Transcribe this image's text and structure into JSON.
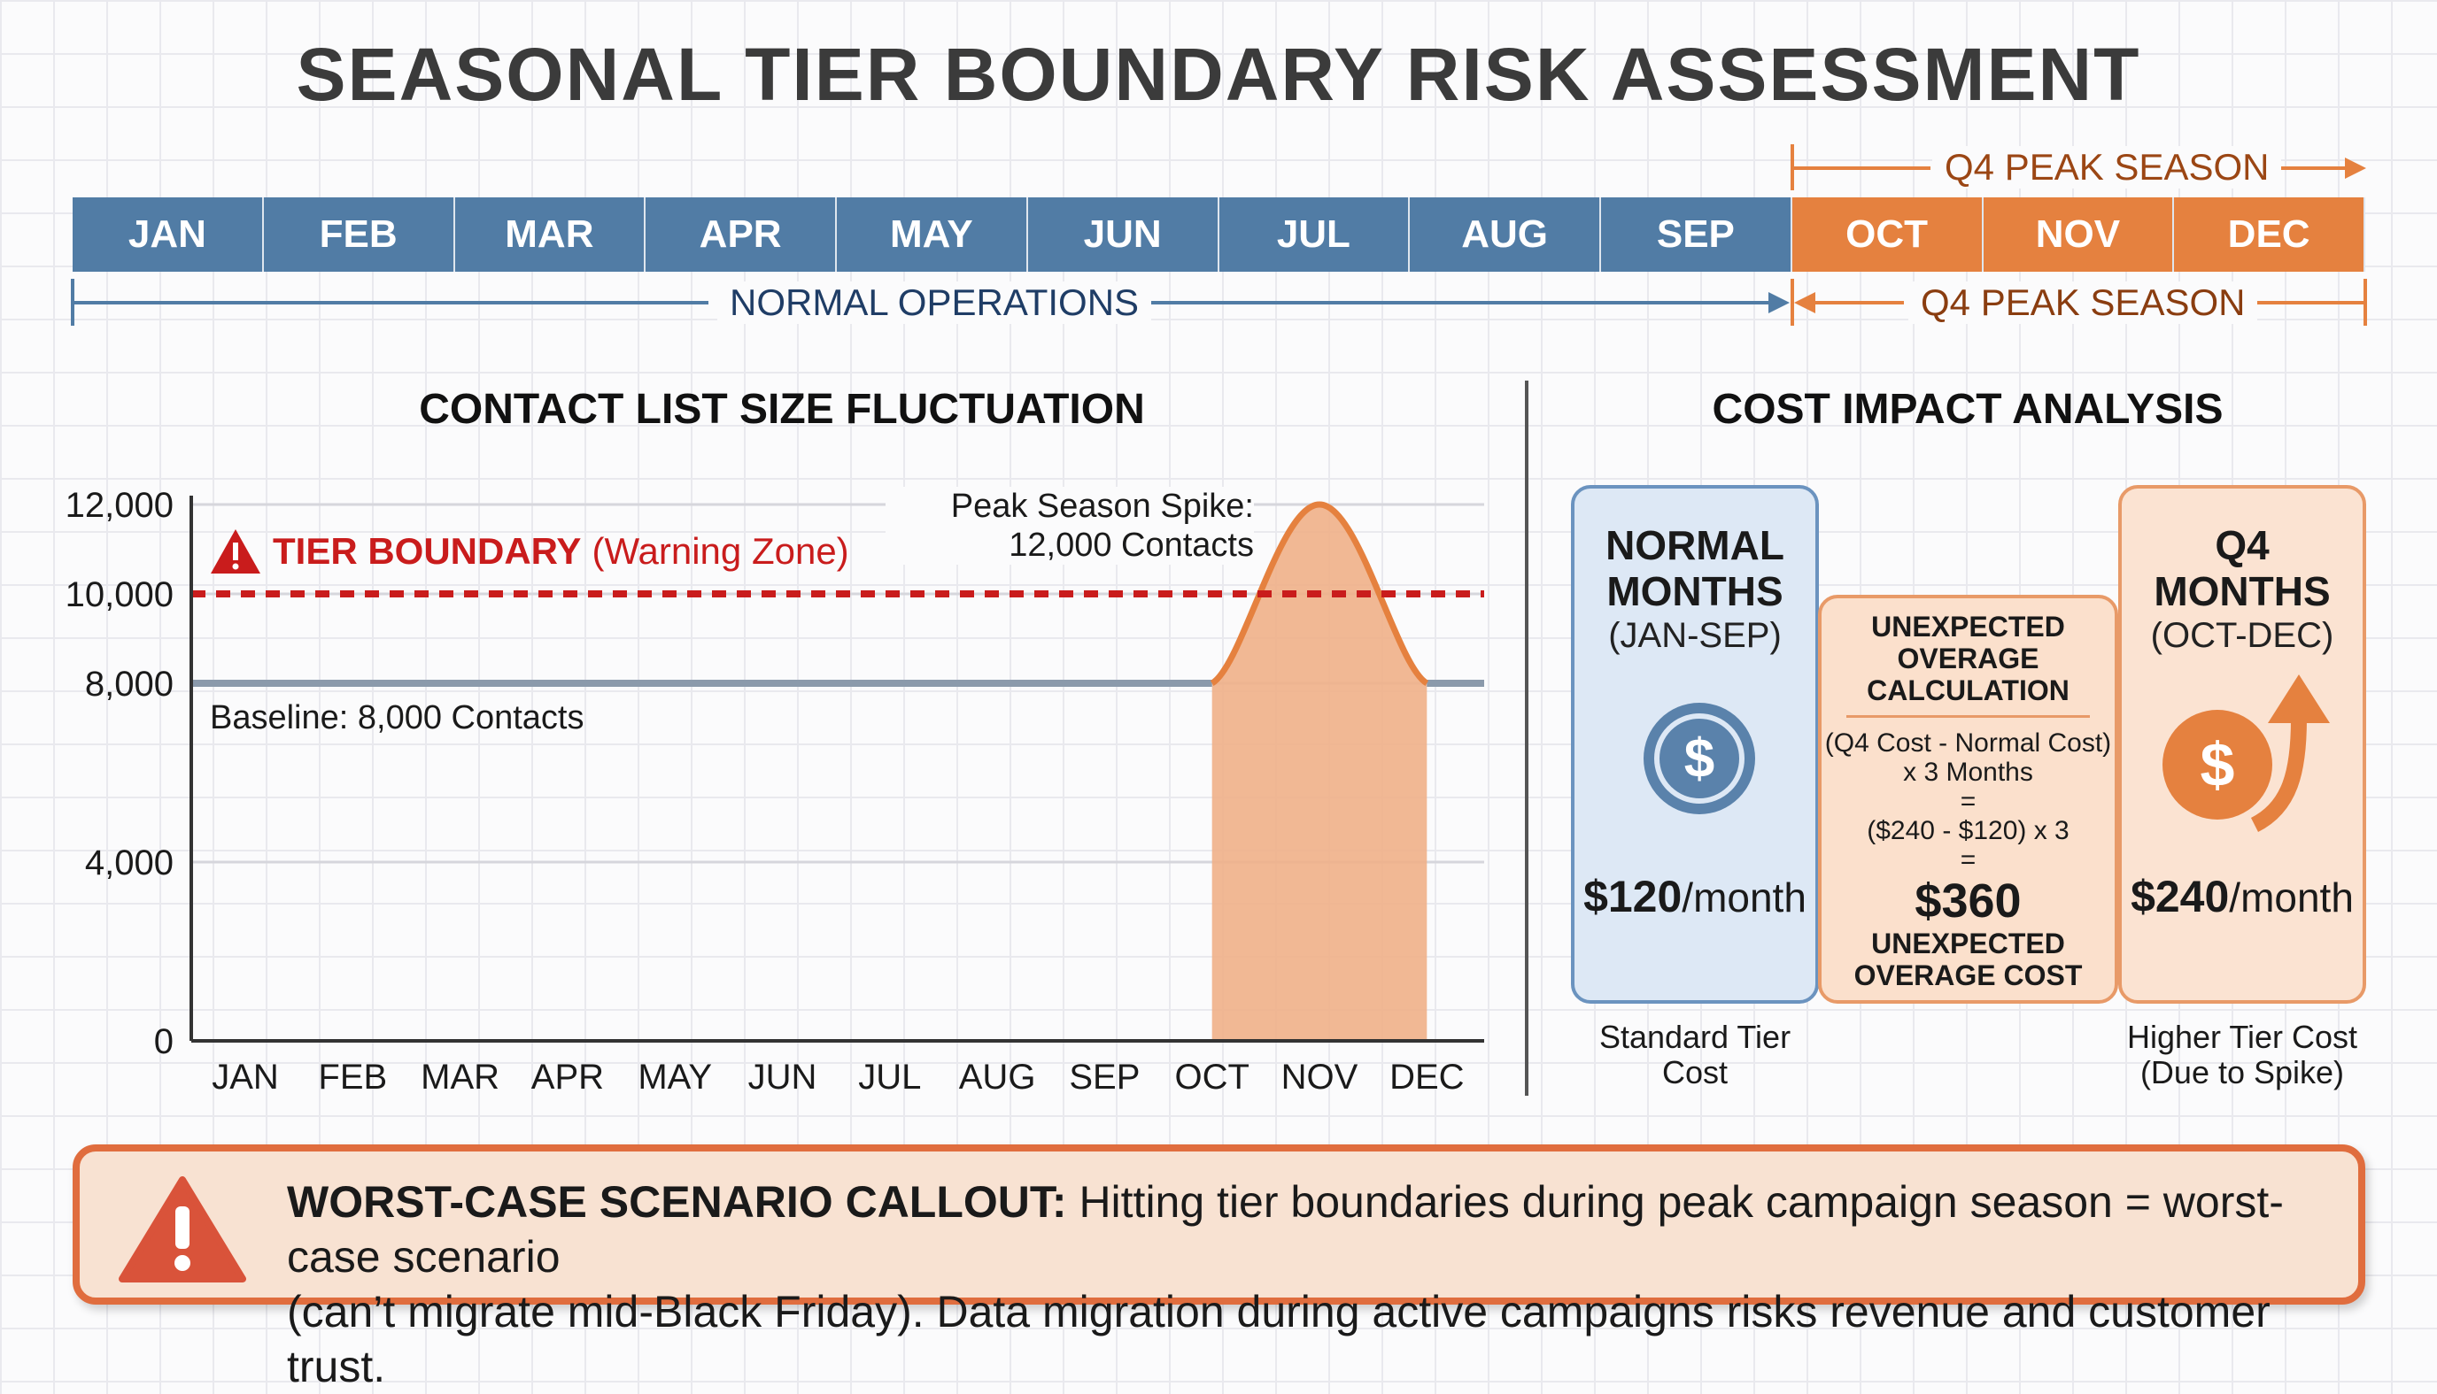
{
  "title": "SEASONAL TIER BOUNDARY RISK ASSESSMENT",
  "timeline": {
    "months": [
      {
        "label": "JAN",
        "season": "normal"
      },
      {
        "label": "FEB",
        "season": "normal"
      },
      {
        "label": "MAR",
        "season": "normal"
      },
      {
        "label": "APR",
        "season": "normal"
      },
      {
        "label": "MAY",
        "season": "normal"
      },
      {
        "label": "JUN",
        "season": "normal"
      },
      {
        "label": "JUL",
        "season": "normal"
      },
      {
        "label": "AUG",
        "season": "normal"
      },
      {
        "label": "SEP",
        "season": "normal"
      },
      {
        "label": "OCT",
        "season": "peak"
      },
      {
        "label": "NOV",
        "season": "peak"
      },
      {
        "label": "DEC",
        "season": "peak"
      }
    ],
    "peak_label_top": "Q4 PEAK SEASON",
    "normal_label": "NORMAL OPERATIONS",
    "peak_label_bottom": "Q4 PEAK SEASON",
    "colors": {
      "normal": "#517ca5",
      "peak": "#e5813f"
    }
  },
  "chart_title": "CONTACT LIST SIZE FLUCTUATION",
  "chart_data": {
    "type": "area",
    "categories": [
      "JAN",
      "FEB",
      "MAR",
      "APR",
      "MAY",
      "JUN",
      "JUL",
      "AUG",
      "SEP",
      "OCT",
      "NOV",
      "DEC"
    ],
    "values": [
      8000,
      8000,
      8000,
      8000,
      8000,
      8000,
      8000,
      8000,
      8000,
      8000,
      12000,
      8000
    ],
    "ylim": [
      0,
      12000
    ],
    "yticks": [
      0,
      4000,
      8000,
      10000,
      12000
    ],
    "ytick_labels": [
      "0",
      "4,000",
      "8,000",
      "10,000",
      "12,000"
    ],
    "threshold": {
      "value": 10000,
      "label": "TIER BOUNDARY",
      "sublabel": "(Warning Zone)",
      "color": "#c91c1c"
    },
    "annotations": {
      "peak_line1": "Peak Season Spike:",
      "peak_line2": "12,000 Contacts",
      "baseline": "Baseline: 8,000 Contacts"
    },
    "highlight_range": [
      "OCT",
      "DEC"
    ],
    "colors": {
      "baseline": "#8b9aab",
      "spike": "#e5813f",
      "fill": "#f0b088"
    },
    "grid": true
  },
  "cost": {
    "title": "COST IMPACT ANALYSIS",
    "normal": {
      "title_1": "NORMAL",
      "title_2": "MONTHS",
      "range": "(JAN-SEP)",
      "amount": "$120",
      "unit": "/month",
      "caption_1": "Standard Tier",
      "caption_2": "Cost",
      "icon": "dollar-coin-icon"
    },
    "overage": {
      "title_1": "UNEXPECTED",
      "title_2": "OVERAGE",
      "title_3": "CALCULATION",
      "formula_1": "(Q4 Cost - Normal Cost)",
      "formula_2": "x 3 Months",
      "eq_1": "=",
      "formula_3": "($240 - $120) x 3",
      "eq_2": "=",
      "amount": "$360",
      "sub_1": "UNEXPECTED",
      "sub_2": "OVERAGE COST"
    },
    "q4": {
      "title": "Q4 MONTHS",
      "range": "(OCT-DEC)",
      "amount": "$240",
      "unit": "/month",
      "caption_1": "Higher Tier Cost",
      "caption_2": "(Due to Spike)",
      "icon": "dollar-up-arrow-icon"
    }
  },
  "callout": {
    "heading": "WORST-CASE SCENARIO CALLOUT:",
    "text_1": " Hitting tier boundaries during peak campaign season = worst-case scenario",
    "text_2": "(can’t migrate mid-Black Friday). Data migration during active campaigns risks revenue and customer trust.",
    "icon": "warning-icon"
  }
}
